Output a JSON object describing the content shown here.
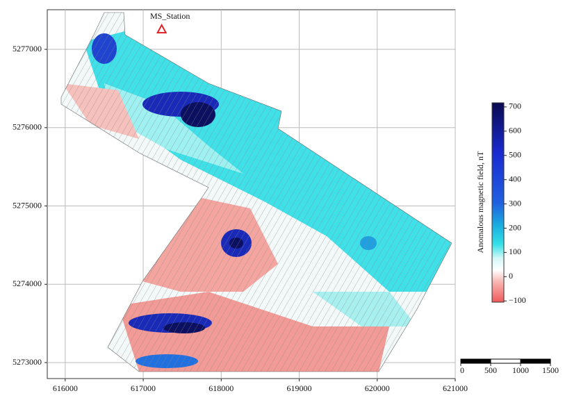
{
  "chart_data": {
    "type": "map",
    "xlim": [
      615770,
      621000
    ],
    "ylim": [
      5272796,
      5277506
    ],
    "xticks": [
      616000,
      617000,
      618000,
      619000,
      620000,
      621000
    ],
    "yticks": [
      5273000,
      5274000,
      5275000,
      5276000,
      5277000
    ],
    "grid": true,
    "station": {
      "label": "MS_Station",
      "x": 617237,
      "y": 5277257,
      "color": "#e02020"
    },
    "colorbar": {
      "label": "Anomalous magnetic field, nT",
      "clim": [
        -105,
        717
      ],
      "ticks": [
        {
          "value": -100,
          "label": "−100"
        },
        0,
        100,
        200,
        300,
        400,
        500,
        600,
        700
      ]
    },
    "scalebar": {
      "ticks": [
        0,
        500,
        1000,
        1500
      ]
    }
  }
}
